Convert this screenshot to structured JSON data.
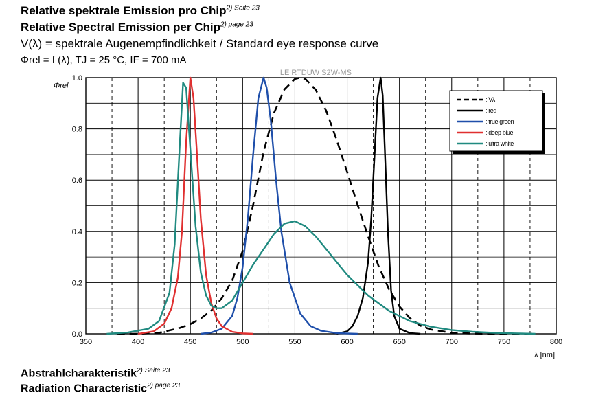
{
  "header": {
    "title_de": "Relative spektrale Emission pro Chip",
    "title_de_ref": "2) Seite 23",
    "title_en": "Relative Spectral Emission per Chip",
    "title_en_ref": "2) page 23",
    "vlambda_line": "V(λ) = spektrale Augenempfindlichkeit / Standard eye response curve",
    "conditions": "Φrel = f (λ), TJ = 25 °C, IF = 700 mA"
  },
  "footer": {
    "next_de": "Abstrahlcharakteristik",
    "next_de_ref": "2) Seite 23",
    "next_en": "Radiation Characteristic",
    "next_en_ref": "2) page 23"
  },
  "chart_data": {
    "type": "line",
    "watermark": "LE RTDUW S2W-MS",
    "ylabel": "Φrel",
    "xlabel": "λ [nm]",
    "xlim": [
      350,
      800
    ],
    "ylim": [
      0,
      1.0
    ],
    "x_ticks": [
      350,
      400,
      450,
      500,
      550,
      600,
      650,
      700,
      750,
      800
    ],
    "y_ticks": [
      "0.0",
      "0.2",
      "0.4",
      "0.6",
      "0.8",
      "1.0"
    ],
    "grid": true,
    "legend_position": "top-right",
    "series": [
      {
        "name": ": Vλ",
        "color": "#000000",
        "style": "dashed",
        "x": [
          380,
          400,
          420,
          440,
          450,
          460,
          470,
          480,
          490,
          500,
          510,
          520,
          530,
          540,
          550,
          555,
          560,
          570,
          580,
          590,
          600,
          610,
          620,
          630,
          640,
          650,
          660,
          670,
          680,
          700,
          720,
          750,
          780
        ],
        "y": [
          0,
          0.0004,
          0.004,
          0.023,
          0.038,
          0.06,
          0.091,
          0.139,
          0.208,
          0.323,
          0.503,
          0.71,
          0.862,
          0.954,
          0.995,
          1.0,
          0.995,
          0.952,
          0.87,
          0.757,
          0.631,
          0.503,
          0.381,
          0.265,
          0.175,
          0.107,
          0.061,
          0.032,
          0.017,
          0.004,
          0.001,
          0.0001,
          0
        ]
      },
      {
        "name": ": red",
        "color": "#000000",
        "style": "solid",
        "x": [
          590,
          600,
          605,
          610,
          615,
          620,
          623,
          626,
          629,
          632,
          634,
          636,
          639,
          642,
          645,
          650,
          660,
          670
        ],
        "y": [
          0,
          0.01,
          0.03,
          0.07,
          0.14,
          0.28,
          0.45,
          0.68,
          0.92,
          1.0,
          0.93,
          0.72,
          0.4,
          0.17,
          0.07,
          0.02,
          0.003,
          0
        ]
      },
      {
        "name": ": true green",
        "color": "#1f4faa",
        "style": "solid",
        "x": [
          460,
          470,
          480,
          490,
          495,
          500,
          505,
          510,
          515,
          520,
          523,
          527,
          532,
          537,
          545,
          555,
          565,
          575,
          590,
          610
        ],
        "y": [
          0,
          0.005,
          0.02,
          0.07,
          0.14,
          0.26,
          0.45,
          0.7,
          0.92,
          1.0,
          0.96,
          0.83,
          0.6,
          0.4,
          0.2,
          0.08,
          0.03,
          0.012,
          0.003,
          0
        ]
      },
      {
        "name": ": deep blue",
        "color": "#e03030",
        "style": "solid",
        "x": [
          400,
          415,
          425,
          432,
          438,
          442,
          446,
          450,
          453,
          456,
          460,
          465,
          470,
          475,
          480,
          490,
          500,
          510
        ],
        "y": [
          0,
          0.01,
          0.04,
          0.1,
          0.22,
          0.4,
          0.75,
          1.0,
          0.92,
          0.72,
          0.45,
          0.23,
          0.12,
          0.06,
          0.03,
          0.008,
          0.002,
          0
        ]
      },
      {
        "name": ": ultra white",
        "color": "#208a80",
        "style": "solid",
        "x": [
          370,
          390,
          410,
          420,
          430,
          435,
          440,
          443,
          446,
          450,
          455,
          460,
          465,
          470,
          475,
          480,
          490,
          500,
          510,
          520,
          530,
          540,
          550,
          560,
          570,
          580,
          590,
          600,
          620,
          640,
          660,
          680,
          700,
          720,
          740,
          760,
          780
        ],
        "y": [
          0,
          0.005,
          0.02,
          0.05,
          0.16,
          0.35,
          0.75,
          0.98,
          0.96,
          0.72,
          0.42,
          0.24,
          0.15,
          0.11,
          0.1,
          0.1,
          0.13,
          0.2,
          0.27,
          0.33,
          0.39,
          0.43,
          0.44,
          0.42,
          0.38,
          0.33,
          0.28,
          0.23,
          0.15,
          0.09,
          0.05,
          0.028,
          0.015,
          0.008,
          0.004,
          0.002,
          0
        ]
      }
    ]
  }
}
